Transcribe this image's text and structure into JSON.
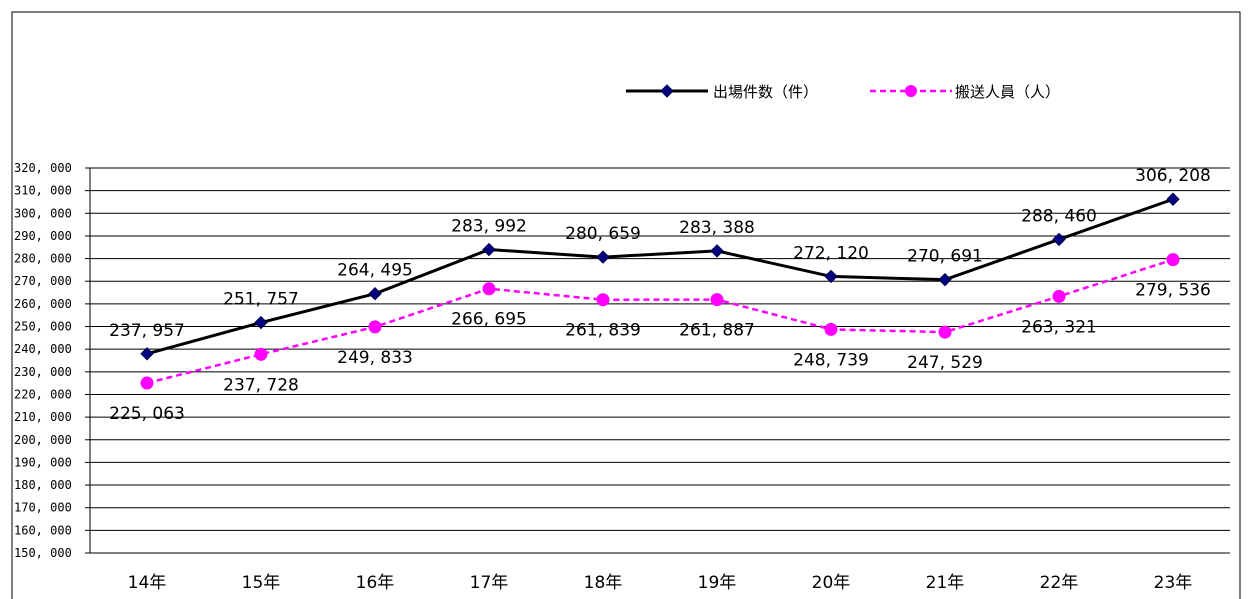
{
  "chart_data": {
    "type": "line",
    "categories": [
      "14年",
      "15年",
      "16年",
      "17年",
      "18年",
      "19年",
      "20年",
      "21年",
      "22年",
      "23年"
    ],
    "series": [
      {
        "name": "出場件数（件）",
        "values": [
          237957,
          251757,
          264495,
          283992,
          280659,
          283388,
          272120,
          270691,
          288460,
          306208
        ],
        "labels": [
          "237, 957",
          "251, 757",
          "264, 495",
          "283, 992",
          "280, 659",
          "283, 388",
          "272, 120",
          "270, 691",
          "288, 460",
          "306, 208"
        ],
        "color": "#000000",
        "marker_color": "#000080",
        "marker": "diamond",
        "line_style": "solid",
        "label_position": "above"
      },
      {
        "name": "搬送人員（人）",
        "values": [
          225063,
          237728,
          249833,
          266695,
          261839,
          261887,
          248739,
          247529,
          263321,
          279536
        ],
        "labels": [
          "225, 063",
          "237, 728",
          "249, 833",
          "266, 695",
          "261, 839",
          "261, 887",
          "248, 739",
          "247, 529",
          "263, 321",
          "279, 536"
        ],
        "color": "#ff00ff",
        "marker_color": "#ff00ff",
        "marker": "circle",
        "line_style": "dashed",
        "label_position": "below"
      }
    ],
    "ylim": [
      150000,
      320000
    ],
    "ytick_step": 10000,
    "ytick_labels": [
      "150, 000",
      "160, 000",
      "170, 000",
      "180, 000",
      "190, 000",
      "200, 000",
      "210, 000",
      "220, 000",
      "230, 000",
      "240, 000",
      "250, 000",
      "260, 000",
      "270, 000",
      "280, 000",
      "290, 000",
      "300, 000",
      "310, 000",
      "320, 000"
    ],
    "grid": true,
    "legend_position": "top-right"
  }
}
